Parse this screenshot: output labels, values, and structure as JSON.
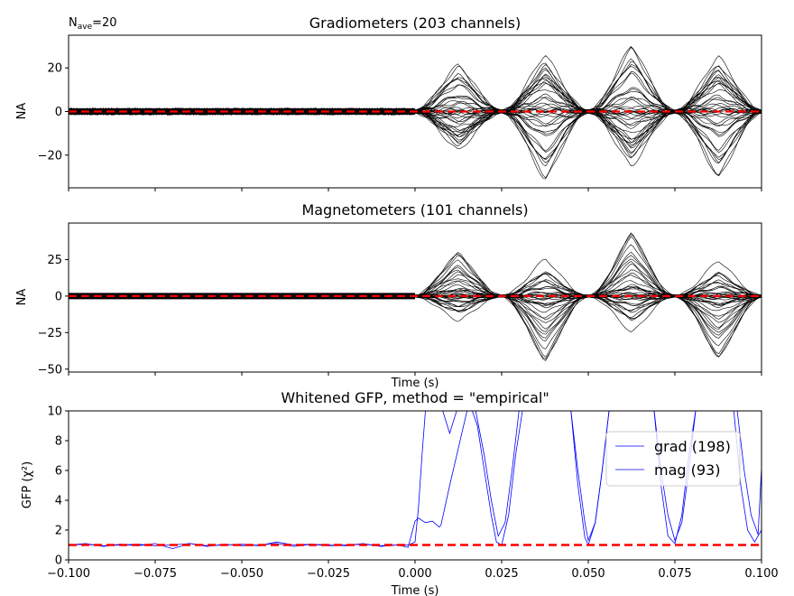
{
  "annotation": {
    "n_prefix": "N",
    "n_sub": "ave",
    "n_value": "=20"
  },
  "chart_data": [
    {
      "type": "line",
      "title": "Gradiometers (203 channels)",
      "ylabel": "NA",
      "xlabel": "",
      "xlim": [
        -0.1,
        0.1
      ],
      "ylim": [
        -35,
        35
      ],
      "yticks": [
        -20,
        0,
        20
      ],
      "ytick_labels": [
        "−20",
        "0",
        "20"
      ],
      "xticks": [
        -0.1,
        -0.075,
        -0.05,
        -0.025,
        0.0,
        0.025,
        0.05,
        0.075,
        0.1
      ],
      "show_xtick_labels": false,
      "series_color": "#000000",
      "baseline_color": "#ff0000",
      "envelope": [
        {
          "x": 0.0,
          "y": 4
        },
        {
          "x": 0.0125,
          "y": 22
        },
        {
          "x": 0.025,
          "y": 3
        },
        {
          "x": 0.0375,
          "y": 32
        },
        {
          "x": 0.05,
          "y": 3
        },
        {
          "x": 0.0625,
          "y": 31
        },
        {
          "x": 0.075,
          "y": 3
        },
        {
          "x": 0.0875,
          "y": 31
        },
        {
          "x": 0.1,
          "y": 4
        }
      ]
    },
    {
      "type": "line",
      "title": "Magnetometers (101 channels)",
      "ylabel": "NA",
      "xlabel": "Time (s)",
      "xlim": [
        -0.1,
        0.1
      ],
      "ylim": [
        -52,
        50
      ],
      "yticks": [
        -50,
        -25,
        0,
        25
      ],
      "ytick_labels": [
        "−50",
        "−25",
        "0",
        "25"
      ],
      "xticks": [
        -0.1,
        -0.075,
        -0.05,
        -0.025,
        0.0,
        0.025,
        0.05,
        0.075,
        0.1
      ],
      "show_xtick_labels": false,
      "series_color": "#000000",
      "baseline_color": "#ff0000",
      "envelope": [
        {
          "x": 0.0,
          "y": 5
        },
        {
          "x": 0.0125,
          "y": 30
        },
        {
          "x": 0.025,
          "y": 3
        },
        {
          "x": 0.0375,
          "y": 45
        },
        {
          "x": 0.05,
          "y": 2
        },
        {
          "x": 0.0625,
          "y": 44
        },
        {
          "x": 0.075,
          "y": 2
        },
        {
          "x": 0.0875,
          "y": 43
        },
        {
          "x": 0.1,
          "y": 5
        }
      ]
    },
    {
      "type": "line",
      "title": "Whitened GFP, method = \"empirical\"",
      "ylabel": "GFP (χ²)",
      "xlabel": "Time (s)",
      "xlim": [
        -0.1,
        0.1
      ],
      "ylim": [
        0,
        10
      ],
      "yticks": [
        0,
        2,
        4,
        6,
        8,
        10
      ],
      "ytick_labels": [
        "0",
        "2",
        "4",
        "6",
        "8",
        "10"
      ],
      "xticks": [
        -0.1,
        -0.075,
        -0.05,
        -0.025,
        0.0,
        0.025,
        0.05,
        0.075,
        0.1
      ],
      "xtick_labels": [
        "−0.100",
        "−0.075",
        "−0.050",
        "−0.025",
        "0.000",
        "0.025",
        "0.050",
        "0.075",
        "0.100"
      ],
      "show_xtick_labels": true,
      "reference_line": {
        "y": 1,
        "color": "#ff0000",
        "style": "dashed"
      },
      "legend": {
        "placement": "upper-right"
      },
      "series": [
        {
          "name": "grad (198)",
          "color": "#0000ff",
          "points": [
            [
              -0.1,
              1.0
            ],
            [
              -0.095,
              1.1
            ],
            [
              -0.09,
              0.9
            ],
            [
              -0.085,
              1.05
            ],
            [
              -0.08,
              0.95
            ],
            [
              -0.075,
              1.1
            ],
            [
              -0.07,
              0.75
            ],
            [
              -0.065,
              1.1
            ],
            [
              -0.06,
              0.9
            ],
            [
              -0.055,
              1.05
            ],
            [
              -0.05,
              0.95
            ],
            [
              -0.045,
              1.0
            ],
            [
              -0.04,
              1.1
            ],
            [
              -0.035,
              0.9
            ],
            [
              -0.03,
              1.05
            ],
            [
              -0.025,
              1.0
            ],
            [
              -0.02,
              0.95
            ],
            [
              -0.015,
              1.1
            ],
            [
              -0.01,
              0.9
            ],
            [
              -0.005,
              1.0
            ],
            [
              -0.002,
              0.85
            ],
            [
              0.0,
              2.6
            ],
            [
              0.001,
              2.8
            ],
            [
              0.003,
              2.5
            ],
            [
              0.005,
              2.6
            ],
            [
              0.007,
              2.2
            ],
            [
              0.0075,
              2.35
            ],
            [
              0.01,
              5
            ],
            [
              0.0125,
              7.5
            ],
            [
              0.015,
              10
            ],
            [
              0.0175,
              10
            ],
            [
              0.02,
              7
            ],
            [
              0.022,
              4
            ],
            [
              0.024,
              1.6
            ],
            [
              0.026,
              2.5
            ],
            [
              0.028,
              6
            ],
            [
              0.03,
              10
            ],
            [
              0.045,
              10
            ],
            [
              0.047,
              6
            ],
            [
              0.049,
              2.5
            ],
            [
              0.05,
              1.3
            ],
            [
              0.052,
              2.5
            ],
            [
              0.054,
              6
            ],
            [
              0.056,
              10
            ],
            [
              0.069,
              10
            ],
            [
              0.071,
              6
            ],
            [
              0.073,
              3
            ],
            [
              0.075,
              1.3
            ],
            [
              0.077,
              2.5
            ],
            [
              0.079,
              6
            ],
            [
              0.081,
              10
            ],
            [
              0.093,
              10
            ],
            [
              0.095,
              6
            ],
            [
              0.097,
              3
            ],
            [
              0.099,
              1.7
            ],
            [
              0.1,
              6.2
            ]
          ]
        },
        {
          "name": "mag (93)",
          "color": "#0000ff",
          "points": [
            [
              -0.1,
              1.0
            ],
            [
              -0.095,
              1.05
            ],
            [
              -0.09,
              0.95
            ],
            [
              -0.085,
              1.0
            ],
            [
              -0.08,
              1.05
            ],
            [
              -0.075,
              0.95
            ],
            [
              -0.07,
              1.0
            ],
            [
              -0.065,
              1.1
            ],
            [
              -0.06,
              0.95
            ],
            [
              -0.055,
              1.0
            ],
            [
              -0.05,
              1.05
            ],
            [
              -0.045,
              0.95
            ],
            [
              -0.04,
              1.2
            ],
            [
              -0.035,
              1.0
            ],
            [
              -0.03,
              1.05
            ],
            [
              -0.025,
              0.95
            ],
            [
              -0.02,
              1.0
            ],
            [
              -0.015,
              1.05
            ],
            [
              -0.01,
              0.95
            ],
            [
              -0.005,
              1.0
            ],
            [
              -0.002,
              1.0
            ],
            [
              0.0,
              1.2
            ],
            [
              0.001,
              3.5
            ],
            [
              0.002,
              7
            ],
            [
              0.003,
              10
            ],
            [
              0.008,
              10
            ],
            [
              0.01,
              8.5
            ],
            [
              0.012,
              10
            ],
            [
              0.0125,
              10
            ],
            [
              0.015,
              10
            ],
            [
              0.0165,
              10
            ],
            [
              0.018,
              9
            ],
            [
              0.02,
              6
            ],
            [
              0.022,
              3
            ],
            [
              0.0235,
              1.2
            ],
            [
              0.025,
              1.0
            ],
            [
              0.027,
              3
            ],
            [
              0.029,
              7
            ],
            [
              0.031,
              10
            ],
            [
              0.045,
              10
            ],
            [
              0.047,
              5
            ],
            [
              0.049,
              1.5
            ],
            [
              0.05,
              1.0
            ],
            [
              0.052,
              2.5
            ],
            [
              0.054,
              6
            ],
            [
              0.056,
              10
            ],
            [
              0.069,
              10
            ],
            [
              0.071,
              5
            ],
            [
              0.073,
              1.6
            ],
            [
              0.075,
              1.1
            ],
            [
              0.077,
              3
            ],
            [
              0.079,
              7
            ],
            [
              0.081,
              10
            ],
            [
              0.092,
              10
            ],
            [
              0.094,
              5
            ],
            [
              0.096,
              2
            ],
            [
              0.098,
              1.2
            ],
            [
              0.1,
              2.0
            ]
          ]
        }
      ]
    }
  ]
}
